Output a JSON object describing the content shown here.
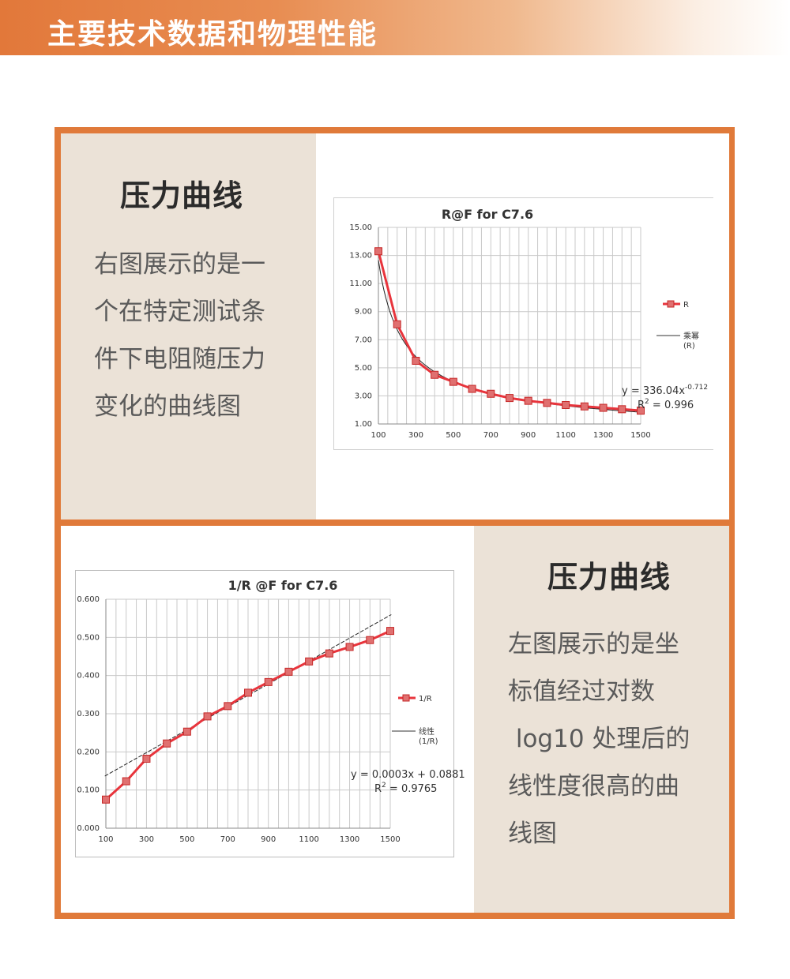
{
  "header": {
    "title": "主要技术数据和物理性能"
  },
  "top_panel": {
    "title": "压力曲线",
    "text_lines": [
      "右图展示的是一",
      "个在特定测试条",
      "件下电阻随压力",
      "变化的曲线图"
    ]
  },
  "bottom_panel": {
    "title": "压力曲线",
    "text_lines": [
      "左图展示的是坐",
      "标值经过对数",
      " log10 处理后的",
      "线性度很高的曲",
      "线图"
    ]
  },
  "colors": {
    "accent": "#e07a3a",
    "beige": "#ebe2d7",
    "series": "#e8343c",
    "marker": "#e07070"
  },
  "chart_data": [
    {
      "type": "line",
      "title": "R@F for C7.6",
      "xlabel": "",
      "ylabel": "",
      "x_ticks": [
        "100",
        "300",
        "500",
        "700",
        "900",
        "1100",
        "1300",
        "1500"
      ],
      "y_ticks": [
        "1.00",
        "3.00",
        "5.00",
        "7.00",
        "9.00",
        "11.00",
        "13.00",
        "15.00"
      ],
      "xlim": [
        100,
        1500
      ],
      "ylim": [
        1,
        15
      ],
      "grid": true,
      "legend_position": "right",
      "series": [
        {
          "name": "R",
          "x": [
            100,
            200,
            300,
            400,
            500,
            600,
            700,
            800,
            900,
            1000,
            1100,
            1200,
            1300,
            1400,
            1500
          ],
          "y": [
            13.3,
            8.1,
            5.5,
            4.5,
            4.0,
            3.5,
            3.15,
            2.85,
            2.65,
            2.5,
            2.35,
            2.25,
            2.15,
            2.05,
            1.95
          ]
        }
      ],
      "trendline": {
        "name": "乘幂",
        "sub": "(R)",
        "type": "power",
        "a": 336.04,
        "b": -0.712
      },
      "equation": {
        "prefix": "y = 336.04x",
        "exponent": "-0.712",
        "r2_prefix": "R",
        "r2_suffix": " = 0.996",
        "r2_sup": "2"
      }
    },
    {
      "type": "line",
      "title": "1/R @F for C7.6",
      "xlabel": "",
      "ylabel": "",
      "x_ticks": [
        "100",
        "300",
        "500",
        "700",
        "900",
        "1100",
        "1300",
        "1500"
      ],
      "y_ticks": [
        "0.000",
        "0.100",
        "0.200",
        "0.300",
        "0.400",
        "0.500",
        "0.600"
      ],
      "xlim": [
        100,
        1500
      ],
      "ylim": [
        0,
        0.6
      ],
      "grid": true,
      "legend_position": "right",
      "series": [
        {
          "name": "1/R",
          "x": [
            100,
            200,
            300,
            400,
            500,
            600,
            700,
            800,
            900,
            1000,
            1100,
            1200,
            1300,
            1400,
            1500
          ],
          "y": [
            0.075,
            0.123,
            0.182,
            0.222,
            0.253,
            0.293,
            0.32,
            0.355,
            0.383,
            0.41,
            0.437,
            0.458,
            0.475,
            0.493,
            0.517
          ]
        }
      ],
      "trendline": {
        "name": "线性",
        "sub": "(1/R)",
        "type": "linear",
        "slope": 0.0003,
        "intercept": 0.0881
      },
      "equation": {
        "prefix": "y = 0.0003x + 0.0881",
        "exponent": "",
        "r2_prefix": "R",
        "r2_suffix": " = 0.9765",
        "r2_sup": "2"
      }
    }
  ]
}
